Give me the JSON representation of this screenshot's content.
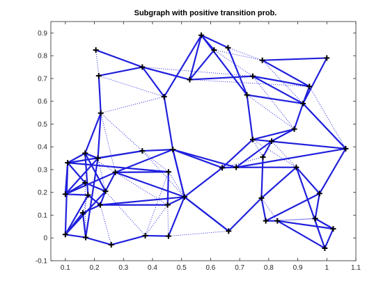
{
  "chart_data": {
    "type": "scatter",
    "title": "Subgraph with positive transition prob.",
    "xlabel": "",
    "ylabel": "",
    "xlim": [
      0.05,
      1.1
    ],
    "ylim": [
      -0.1,
      0.95
    ],
    "xticks": [
      "0.1",
      "0.2",
      "0.3",
      "0.4",
      "0.5",
      "0.6",
      "0.7",
      "0.8",
      "0.9",
      "1",
      "1.1"
    ],
    "yticks": [
      "-0.1",
      "0",
      "0.1",
      "0.2",
      "0.3",
      "0.4",
      "0.5",
      "0.6",
      "0.7",
      "0.8",
      "0.9"
    ],
    "grid": false,
    "legend": "none",
    "marker": "+",
    "node_color": "#000000",
    "edge_color": "#1f1fdd",
    "nodes": [
      [
        0.205,
        0.825
      ],
      [
        0.215,
        0.712
      ],
      [
        0.365,
        0.75
      ],
      [
        0.222,
        0.548
      ],
      [
        0.44,
        0.62
      ],
      [
        0.568,
        0.89
      ],
      [
        0.612,
        0.825
      ],
      [
        0.66,
        0.835
      ],
      [
        0.778,
        0.78
      ],
      [
        1.0,
        0.79
      ],
      [
        0.528,
        0.695
      ],
      [
        0.745,
        0.71
      ],
      [
        0.94,
        0.665
      ],
      [
        0.725,
        0.628
      ],
      [
        0.918,
        0.59
      ],
      [
        0.888,
        0.478
      ],
      [
        1.065,
        0.392
      ],
      [
        0.745,
        0.432
      ],
      [
        0.81,
        0.425
      ],
      [
        0.78,
        0.355
      ],
      [
        0.47,
        0.388
      ],
      [
        0.365,
        0.382
      ],
      [
        0.64,
        0.308
      ],
      [
        0.688,
        0.31
      ],
      [
        0.895,
        0.31
      ],
      [
        0.455,
        0.29
      ],
      [
        0.108,
        0.33
      ],
      [
        0.168,
        0.372
      ],
      [
        0.212,
        0.35
      ],
      [
        0.1,
        0.192
      ],
      [
        0.272,
        0.288
      ],
      [
        0.168,
        0.242
      ],
      [
        0.178,
        0.188
      ],
      [
        0.238,
        0.205
      ],
      [
        0.22,
        0.145
      ],
      [
        0.16,
        0.11
      ],
      [
        0.51,
        0.18
      ],
      [
        0.452,
        0.145
      ],
      [
        0.775,
        0.175
      ],
      [
        0.975,
        0.195
      ],
      [
        0.1,
        0.015
      ],
      [
        0.17,
        0.002
      ],
      [
        0.258,
        -0.03
      ],
      [
        0.375,
        0.01
      ],
      [
        0.455,
        0.008
      ],
      [
        0.662,
        0.03
      ],
      [
        0.79,
        0.075
      ],
      [
        0.83,
        0.075
      ],
      [
        0.96,
        0.085
      ],
      [
        1.022,
        0.04
      ],
      [
        0.993,
        -0.045
      ]
    ],
    "solid_edges": [
      [
        0,
        2
      ],
      [
        1,
        2
      ],
      [
        1,
        3
      ],
      [
        2,
        4
      ],
      [
        2,
        10
      ],
      [
        4,
        5
      ],
      [
        4,
        20
      ],
      [
        5,
        6
      ],
      [
        5,
        7
      ],
      [
        5,
        10
      ],
      [
        5,
        13
      ],
      [
        6,
        10
      ],
      [
        7,
        13
      ],
      [
        8,
        9
      ],
      [
        8,
        12
      ],
      [
        9,
        14
      ],
      [
        10,
        11
      ],
      [
        11,
        12
      ],
      [
        11,
        14
      ],
      [
        12,
        14
      ],
      [
        13,
        17
      ],
      [
        13,
        14
      ],
      [
        14,
        15
      ],
      [
        14,
        16
      ],
      [
        17,
        16
      ],
      [
        17,
        15
      ],
      [
        18,
        15
      ],
      [
        18,
        19
      ],
      [
        22,
        23
      ],
      [
        23,
        16
      ],
      [
        23,
        24
      ],
      [
        22,
        36
      ],
      [
        36,
        20
      ],
      [
        20,
        36
      ],
      [
        21,
        26
      ],
      [
        21,
        28
      ],
      [
        21,
        20
      ],
      [
        20,
        30
      ],
      [
        25,
        26
      ],
      [
        25,
        30
      ],
      [
        26,
        27
      ],
      [
        26,
        29
      ],
      [
        26,
        40
      ],
      [
        27,
        28
      ],
      [
        27,
        33
      ],
      [
        28,
        29
      ],
      [
        28,
        41
      ],
      [
        29,
        30
      ],
      [
        29,
        31
      ],
      [
        29,
        32
      ],
      [
        30,
        33
      ],
      [
        31,
        33
      ],
      [
        32,
        34
      ],
      [
        32,
        40
      ],
      [
        33,
        34
      ],
      [
        34,
        35
      ],
      [
        35,
        40
      ],
      [
        36,
        37
      ],
      [
        36,
        45
      ],
      [
        37,
        34
      ],
      [
        37,
        25
      ],
      [
        38,
        24
      ],
      [
        38,
        45
      ],
      [
        38,
        19
      ],
      [
        38,
        46
      ],
      [
        39,
        46
      ],
      [
        39,
        48
      ],
      [
        39,
        16
      ],
      [
        40,
        41
      ],
      [
        41,
        42
      ],
      [
        42,
        43
      ],
      [
        43,
        44
      ],
      [
        44,
        36
      ],
      [
        45,
        36
      ],
      [
        46,
        47
      ],
      [
        47,
        49
      ],
      [
        48,
        49
      ],
      [
        49,
        50
      ],
      [
        50,
        47
      ],
      [
        24,
        39
      ],
      [
        24,
        50
      ],
      [
        17,
        22
      ],
      [
        22,
        20
      ],
      [
        3,
        27
      ],
      [
        3,
        28
      ],
      [
        30,
        36
      ],
      [
        34,
        36
      ],
      [
        20,
        23
      ],
      [
        18,
        23
      ],
      [
        31,
        26
      ],
      [
        35,
        41
      ],
      [
        32,
        27
      ],
      [
        40,
        33
      ]
    ],
    "dotted_edges": [
      [
        1,
        4
      ],
      [
        2,
        11
      ],
      [
        3,
        4
      ],
      [
        3,
        21
      ],
      [
        3,
        30
      ],
      [
        6,
        8
      ],
      [
        6,
        11
      ],
      [
        7,
        8
      ],
      [
        8,
        14
      ],
      [
        10,
        12
      ],
      [
        11,
        15
      ],
      [
        13,
        15
      ],
      [
        12,
        16
      ],
      [
        17,
        19
      ],
      [
        17,
        24
      ],
      [
        18,
        24
      ],
      [
        19,
        22
      ],
      [
        21,
        25
      ],
      [
        20,
        30
      ],
      [
        25,
        36
      ],
      [
        26,
        31
      ],
      [
        27,
        30
      ],
      [
        28,
        33
      ],
      [
        30,
        37
      ],
      [
        31,
        41
      ],
      [
        34,
        42
      ],
      [
        33,
        43
      ],
      [
        37,
        43
      ],
      [
        37,
        44
      ],
      [
        38,
        47
      ],
      [
        46,
        48
      ],
      [
        47,
        48
      ],
      [
        48,
        50
      ],
      [
        19,
        38
      ],
      [
        45,
        44
      ],
      [
        21,
        36
      ],
      [
        22,
        24
      ],
      [
        25,
        43
      ],
      [
        32,
        35
      ],
      [
        0,
        1
      ]
    ]
  }
}
